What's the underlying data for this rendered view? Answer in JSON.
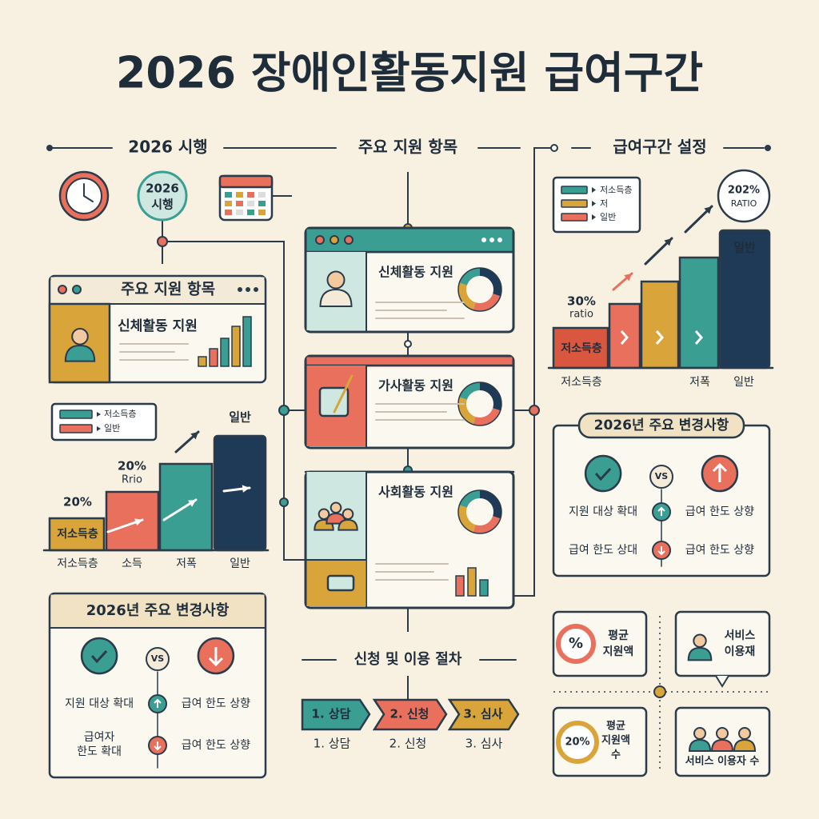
{
  "title": "2026 장애인활동지원 급여구간",
  "headers": {
    "enforcement": "2026 시행",
    "support": "주요 지원 항목",
    "benefit": "급여구간 설정",
    "procedure": "신청 및 이용 절차"
  },
  "enforcement_badge": [
    "2026",
    "시행"
  ],
  "left_card": {
    "title": "주요 지원 항목",
    "item": "신체활동 지원"
  },
  "left_chart": {
    "legend": [
      "저소득층",
      "일반"
    ],
    "annotations": [
      "20%",
      "20%",
      "Rrio",
      "일반"
    ],
    "bar_label": "저소득층",
    "categories": [
      "저소득층",
      "소득",
      "저폭",
      "일반"
    ]
  },
  "left_changes": {
    "title": "2026년 주요 변경사항",
    "vs": "VS",
    "rows": [
      [
        "지원 대상 확대",
        "급여 한도 상향"
      ],
      [
        [
          "급여자",
          "한도 확대"
        ],
        "급여 한도 상향"
      ]
    ]
  },
  "center_cards": [
    "신체활동 지원",
    "가사활동 지원",
    "사회활동 지원"
  ],
  "steps": {
    "chevrons": [
      "1. 상담",
      "2. 신청",
      "3. 심사"
    ],
    "captions": [
      "1. 상담",
      "2. 신청",
      "3. 심사"
    ]
  },
  "right_chart": {
    "legend": [
      "저소득층",
      "저",
      "일반"
    ],
    "badge": [
      "202%",
      "RATIO"
    ],
    "annotation": [
      "30%",
      "ratio"
    ],
    "bar_label": "저소득층",
    "top_label": "일반",
    "categories": [
      "저소득층",
      "저폭",
      "일반"
    ]
  },
  "right_changes": {
    "title": "2026년 주요 변경사항",
    "vs": "VS",
    "rows": [
      [
        "지원 대상 확대",
        "급여 한도 상향"
      ],
      [
        "급여 한도 상대",
        "급여 한도 상향"
      ]
    ]
  },
  "stats": [
    {
      "icon": "%",
      "label": [
        "평균",
        "지원액"
      ]
    },
    {
      "label": [
        "서비스",
        "이용재"
      ]
    },
    {
      "icon": "20%",
      "label": [
        "평균",
        "지원액",
        "수"
      ]
    },
    {
      "label": "서비스 이용자 수"
    }
  ]
}
